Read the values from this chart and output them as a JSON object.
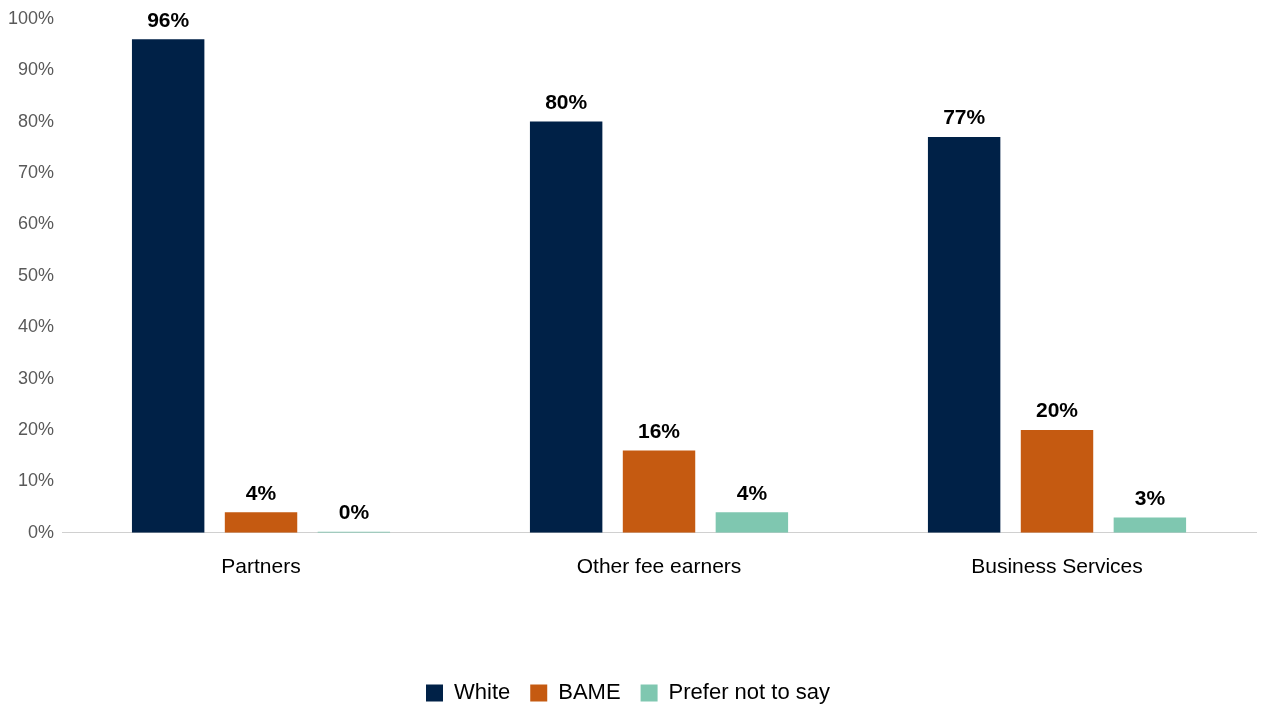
{
  "chart_data": {
    "type": "bar",
    "categories": [
      "Partners",
      "Other fee earners",
      "Business Services"
    ],
    "series": [
      {
        "name": "White",
        "color": "#002147",
        "values": [
          96,
          80,
          77
        ],
        "value_labels": [
          "96%",
          "80%",
          "77%"
        ]
      },
      {
        "name": "BAME",
        "color": "#c55a11",
        "values": [
          4,
          16,
          20
        ],
        "value_labels": [
          "4%",
          "16%",
          "20%"
        ]
      },
      {
        "name": "Prefer not to say",
        "color": "#7fc7b0",
        "values": [
          0,
          4,
          3
        ],
        "value_labels": [
          "0%",
          "4%",
          "3%"
        ]
      }
    ],
    "ylim": [
      0,
      100
    ],
    "yticks": [
      {
        "value": 0,
        "label": "0%"
      },
      {
        "value": 10,
        "label": "10%"
      },
      {
        "value": 20,
        "label": "20%"
      },
      {
        "value": 30,
        "label": "30%"
      },
      {
        "value": 40,
        "label": "40%"
      },
      {
        "value": 50,
        "label": "50%"
      },
      {
        "value": 60,
        "label": "60%"
      },
      {
        "value": 70,
        "label": "70%"
      },
      {
        "value": 80,
        "label": "80%"
      },
      {
        "value": 90,
        "label": "90%"
      },
      {
        "value": 100,
        "label": "100%"
      }
    ],
    "grid": false,
    "legend": "bottom"
  }
}
